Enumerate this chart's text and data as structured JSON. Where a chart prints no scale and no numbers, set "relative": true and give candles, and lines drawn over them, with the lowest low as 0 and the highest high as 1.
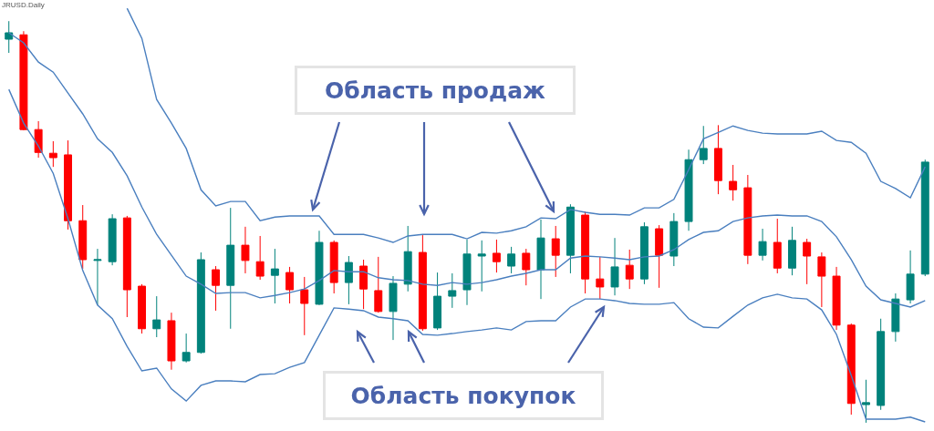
{
  "chart_data": {
    "type": "candlestick",
    "title": "JRUSD.Daily",
    "annotations": [
      "Область продаж",
      "Область покупок"
    ],
    "relative": true,
    "categories": [
      null,
      null,
      null,
      null,
      null,
      null,
      null,
      null,
      null,
      null,
      null,
      null,
      null,
      null,
      null,
      null,
      null,
      null,
      null,
      null,
      null,
      null,
      null,
      null,
      null,
      null,
      null,
      null,
      null,
      null,
      null,
      null,
      null,
      null,
      null,
      null,
      null,
      null,
      null,
      null,
      null,
      null,
      null,
      null,
      null,
      null,
      null,
      null,
      null,
      null,
      null,
      null,
      null,
      null,
      null,
      null,
      null,
      null,
      null,
      null,
      null,
      null,
      null
    ],
    "ohlc": [
      [
        0.955,
        1.0,
        0.921,
        0.971
      ],
      [
        0.966,
        0.975,
        0.728,
        0.73
      ],
      [
        0.73,
        0.751,
        0.66,
        0.673
      ],
      [
        0.671,
        0.701,
        0.637,
        0.66
      ],
      [
        0.667,
        0.703,
        0.481,
        0.503
      ],
      [
        0.503,
        0.542,
        0.383,
        0.406
      ],
      [
        0.404,
        0.433,
        0.293,
        0.406
      ],
      [
        0.401,
        0.519,
        0.392,
        0.508
      ],
      [
        0.51,
        0.515,
        0.263,
        0.331
      ],
      [
        0.34,
        0.345,
        0.222,
        0.234
      ],
      [
        0.234,
        0.315,
        0.213,
        0.256
      ],
      [
        0.254,
        0.274,
        0.132,
        0.154
      ],
      [
        0.154,
        0.222,
        0.15,
        0.175
      ],
      [
        0.175,
        0.424,
        0.172,
        0.406
      ],
      [
        0.381,
        0.39,
        0.279,
        0.342
      ],
      [
        0.342,
        0.535,
        0.234,
        0.442
      ],
      [
        0.442,
        0.488,
        0.372,
        0.404
      ],
      [
        0.401,
        0.465,
        0.356,
        0.365
      ],
      [
        0.367,
        0.433,
        0.297,
        0.383
      ],
      [
        0.374,
        0.388,
        0.297,
        0.331
      ],
      [
        0.331,
        0.363,
        0.218,
        0.297
      ],
      [
        0.295,
        0.478,
        0.293,
        0.449
      ],
      [
        0.449,
        0.454,
        0.322,
        0.349
      ],
      [
        0.349,
        0.415,
        0.295,
        0.399
      ],
      [
        0.39,
        0.406,
        0.283,
        0.333
      ],
      [
        0.329,
        0.413,
        0.274,
        0.277
      ],
      [
        0.277,
        0.365,
        0.206,
        0.347
      ],
      [
        0.345,
        0.49,
        0.327,
        0.426
      ],
      [
        0.424,
        0.467,
        0.229,
        0.234
      ],
      [
        0.236,
        0.374,
        0.231,
        0.315
      ],
      [
        0.315,
        0.372,
        0.286,
        0.329
      ],
      [
        0.331,
        0.456,
        0.293,
        0.42
      ],
      [
        0.415,
        0.454,
        0.327,
        0.42
      ],
      [
        0.422,
        0.456,
        0.374,
        0.401
      ],
      [
        0.39,
        0.438,
        0.372,
        0.42
      ],
      [
        0.422,
        0.433,
        0.342,
        0.381
      ],
      [
        0.381,
        0.506,
        0.308,
        0.46
      ],
      [
        0.458,
        0.49,
        0.363,
        0.417
      ],
      [
        0.417,
        0.544,
        0.372,
        0.537
      ],
      [
        0.517,
        0.526,
        0.322,
        0.358
      ],
      [
        0.358,
        0.413,
        0.308,
        0.338
      ],
      [
        0.338,
        0.46,
        0.317,
        0.388
      ],
      [
        0.392,
        0.431,
        0.333,
        0.358
      ],
      [
        0.358,
        0.499,
        0.345,
        0.488
      ],
      [
        0.483,
        0.492,
        0.336,
        0.417
      ],
      [
        0.415,
        0.522,
        0.39,
        0.501
      ],
      [
        0.501,
        0.68,
        0.478,
        0.655
      ],
      [
        0.655,
        0.739,
        0.644,
        0.683
      ],
      [
        0.683,
        0.741,
        0.569,
        0.603
      ],
      [
        0.601,
        0.642,
        0.553,
        0.58
      ],
      [
        0.585,
        0.617,
        0.395,
        0.417
      ],
      [
        0.417,
        0.483,
        0.404,
        0.451
      ],
      [
        0.449,
        0.508,
        0.372,
        0.385
      ],
      [
        0.385,
        0.488,
        0.367,
        0.454
      ],
      [
        0.449,
        0.458,
        0.345,
        0.415
      ],
      [
        0.413,
        0.424,
        0.288,
        0.365
      ],
      [
        0.365,
        0.388,
        0.231,
        0.243
      ],
      [
        0.243,
        0.247,
        0.02,
        0.048
      ],
      [
        0.045,
        0.107,
        0.0,
        0.05
      ],
      [
        0.043,
        0.259,
        0.032,
        0.227
      ],
      [
        0.227,
        0.322,
        0.202,
        0.308
      ],
      [
        0.306,
        0.429,
        0.297,
        0.37
      ],
      [
        0.37,
        0.655,
        0.365,
        0.649
      ]
    ],
    "colors": [
      "#00827b",
      "#ff0000",
      "#ff0000",
      "#ff0000",
      "#ff0000",
      "#ff0000",
      "#00827b",
      "#00827b",
      "#ff0000",
      "#ff0000",
      "#00827b",
      "#ff0000",
      "#00827b",
      "#00827b",
      "#ff0000",
      "#00827b",
      "#ff0000",
      "#ff0000",
      "#00827b",
      "#ff0000",
      "#ff0000",
      "#00827b",
      "#ff0000",
      "#00827b",
      "#ff0000",
      "#ff0000",
      "#00827b",
      "#00827b",
      "#ff0000",
      "#00827b",
      "#00827b",
      "#00827b",
      "#00827b",
      "#ff0000",
      "#00827b",
      "#ff0000",
      "#00827b",
      "#ff0000",
      "#00827b",
      "#ff0000",
      "#ff0000",
      "#00827b",
      "#ff0000",
      "#00827b",
      "#ff0000",
      "#00827b",
      "#00827b",
      "#00827b",
      "#ff0000",
      "#ff0000",
      "#ff0000",
      "#00827b",
      "#ff0000",
      "#00827b",
      "#ff0000",
      "#ff0000",
      "#ff0000",
      "#ff0000",
      "#00827b",
      "#00827b",
      "#00827b",
      "#00827b",
      "#00827b"
    ],
    "series": [
      {
        "type": "line",
        "color": "#4a7fbf",
        "values": [
          null,
          null,
          null,
          null,
          null,
          null,
          null,
          null,
          1.032,
          0.957,
          0.805,
          0.746,
          0.683,
          0.58,
          0.54,
          0.551,
          0.551,
          0.503,
          0.512,
          0.515,
          0.515,
          0.515,
          0.469,
          0.469,
          0.469,
          0.46,
          0.449,
          0.465,
          0.469,
          0.469,
          0.469,
          0.458,
          0.474,
          0.472,
          0.478,
          0.488,
          0.51,
          0.508,
          0.531,
          0.524,
          0.519,
          0.519,
          0.517,
          0.535,
          0.535,
          0.556,
          0.63,
          0.707,
          0.723,
          0.739,
          0.728,
          0.721,
          0.719,
          0.719,
          0.719,
          0.726,
          0.703,
          0.698,
          0.671,
          0.601,
          0.583,
          0.56,
          0.637
        ]
      },
      {
        "type": "line",
        "color": "#4a7fbf",
        "values": [
          0.971,
          0.946,
          0.898,
          0.873,
          0.821,
          0.769,
          0.707,
          0.673,
          0.615,
          0.537,
          0.469,
          0.417,
          0.365,
          0.345,
          0.322,
          0.324,
          0.324,
          0.311,
          0.317,
          0.324,
          0.333,
          0.354,
          0.379,
          0.376,
          0.376,
          0.361,
          0.356,
          0.354,
          0.345,
          0.342,
          0.349,
          0.345,
          0.349,
          0.356,
          0.365,
          0.372,
          0.381,
          0.381,
          0.41,
          0.415,
          0.413,
          0.41,
          0.406,
          0.413,
          0.415,
          0.431,
          0.456,
          0.474,
          0.478,
          0.501,
          0.51,
          0.515,
          0.517,
          0.515,
          0.515,
          0.501,
          0.463,
          0.406,
          0.34,
          0.306,
          0.297,
          0.288,
          0.304
        ]
      },
      {
        "type": "line",
        "color": "#4a7fbf",
        "values": [
          0.83,
          0.746,
          0.689,
          0.621,
          0.508,
          0.379,
          0.293,
          0.259,
          0.19,
          0.129,
          0.136,
          0.084,
          0.054,
          0.093,
          0.104,
          0.104,
          0.102,
          0.12,
          0.122,
          0.138,
          0.15,
          0.218,
          0.286,
          0.283,
          0.279,
          0.263,
          0.259,
          0.254,
          0.22,
          0.218,
          0.222,
          0.227,
          0.231,
          0.236,
          0.231,
          0.252,
          0.254,
          0.254,
          0.288,
          0.308,
          0.308,
          0.304,
          0.297,
          0.295,
          0.295,
          0.299,
          0.259,
          0.238,
          0.236,
          0.265,
          0.293,
          0.311,
          0.32,
          0.311,
          0.308,
          0.281,
          0.22,
          0.118,
          0.009,
          0.009,
          0.009,
          0.014,
          0.002
        ]
      }
    ]
  }
}
